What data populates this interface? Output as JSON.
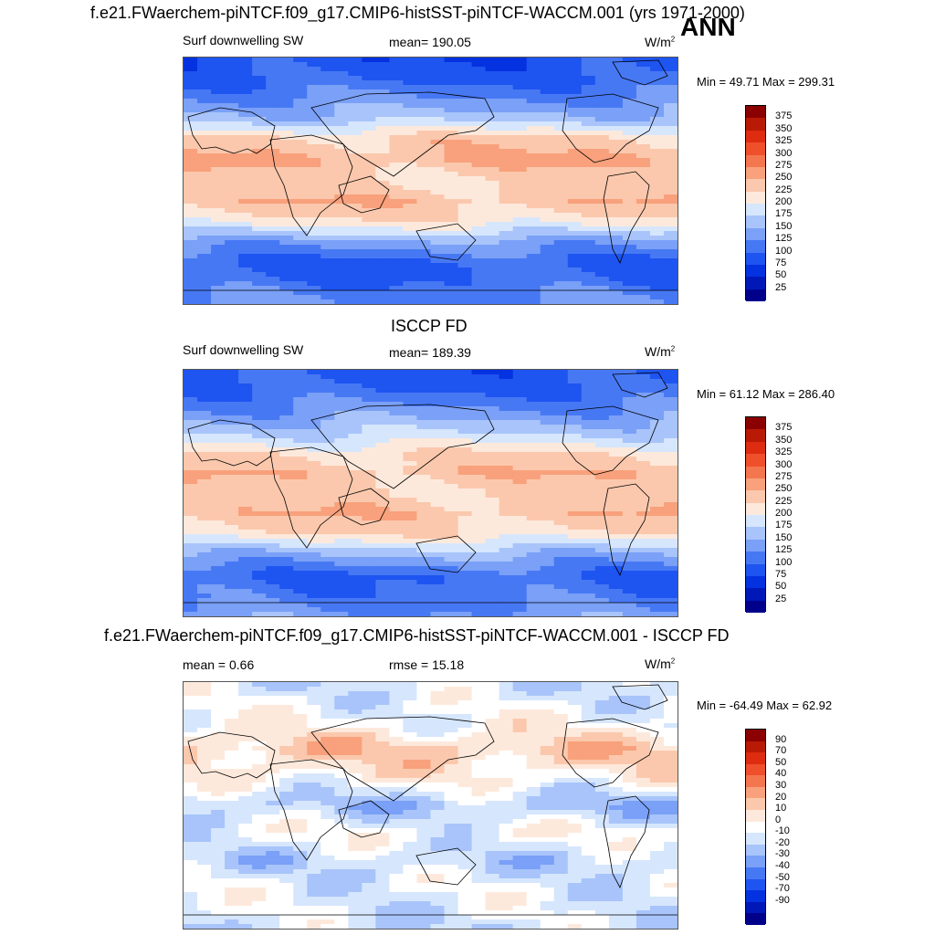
{
  "header": {
    "title": "f.e21.FWaerchem-piNTCF.f09_g17.CMIP6-histSST-piNTCF-WACCM.001 (yrs 1971-2000)",
    "season": "ANN"
  },
  "colors": {
    "abs_scale": [
      "#00008b",
      "#0018b8",
      "#0432e0",
      "#1e54f0",
      "#4778f4",
      "#7aa0f7",
      "#a8c4fa",
      "#d6e6fd",
      "#fde9dc",
      "#fbc8ad",
      "#f8a17c",
      "#f4764f",
      "#ef4f2b",
      "#dd2c10",
      "#b81a06",
      "#8b0000"
    ],
    "diff_scale": [
      "#00008b",
      "#0018b8",
      "#0432e0",
      "#1e54f0",
      "#4778f4",
      "#7aa0f7",
      "#a8c4fa",
      "#d6e6fd",
      "#ffffff",
      "#fde9dc",
      "#fbc8ad",
      "#f8a17c",
      "#f4764f",
      "#ef4f2b",
      "#dd2c10",
      "#b81a06",
      "#8b0000"
    ]
  },
  "chart_data": [
    {
      "type": "heatmap",
      "variable": "Surf downwelling SW",
      "stat_label": "mean= 190.05",
      "units": "W/m",
      "units_exp": "2",
      "minmax": "Min =  49.71 Max = 299.31",
      "levels": [
        "375",
        "350",
        "325",
        "300",
        "275",
        "250",
        "225",
        "200",
        "175",
        "150",
        "125",
        "100",
        "75",
        "50",
        "25"
      ],
      "bands_lat_value": [
        {
          "lat": 90,
          "value": 80
        },
        {
          "lat": 75,
          "value": 95
        },
        {
          "lat": 60,
          "value": 125
        },
        {
          "lat": 45,
          "value": 165
        },
        {
          "lat": 30,
          "value": 235
        },
        {
          "lat": 15,
          "value": 250
        },
        {
          "lat": 0,
          "value": 225
        },
        {
          "lat": -15,
          "value": 245
        },
        {
          "lat": -30,
          "value": 215
        },
        {
          "lat": -45,
          "value": 140
        },
        {
          "lat": -60,
          "value": 95
        },
        {
          "lat": -75,
          "value": 105
        },
        {
          "lat": -90,
          "value": 130
        }
      ]
    },
    {
      "type": "heatmap",
      "panel_title": "ISCCP FD",
      "variable": "Surf downwelling SW",
      "stat_label": "mean= 189.39",
      "units": "W/m",
      "units_exp": "2",
      "minmax": "Min =  61.12 Max = 286.40",
      "levels": [
        "375",
        "350",
        "325",
        "300",
        "275",
        "250",
        "225",
        "200",
        "175",
        "150",
        "125",
        "100",
        "75",
        "50",
        "25"
      ],
      "bands_lat_value": [
        {
          "lat": 90,
          "value": 85
        },
        {
          "lat": 75,
          "value": 100
        },
        {
          "lat": 60,
          "value": 130
        },
        {
          "lat": 45,
          "value": 170
        },
        {
          "lat": 30,
          "value": 220
        },
        {
          "lat": 15,
          "value": 245
        },
        {
          "lat": 0,
          "value": 230
        },
        {
          "lat": -15,
          "value": 245
        },
        {
          "lat": -30,
          "value": 220
        },
        {
          "lat": -45,
          "value": 150
        },
        {
          "lat": -60,
          "value": 100
        },
        {
          "lat": -75,
          "value": 110
        },
        {
          "lat": -90,
          "value": 135
        }
      ]
    },
    {
      "type": "heatmap",
      "panel_title": "f.e21.FWaerchem-piNTCF.f09_g17.CMIP6-histSST-piNTCF-WACCM.001 - ISCCP FD",
      "mean_label": "mean =   0.66",
      "rmse_label": "rmse =  15.18",
      "units": "W/m",
      "units_exp": "2",
      "minmax": "Min = -64.49 Max =  62.92",
      "levels": [
        "90",
        "70",
        "50",
        "40",
        "30",
        "20",
        "10",
        "0",
        "-10",
        "-20",
        "-30",
        "-40",
        "-50",
        "-70",
        "-90"
      ],
      "bands_lat_value": [
        {
          "lat": 90,
          "value": -5
        },
        {
          "lat": 60,
          "value": 5
        },
        {
          "lat": 40,
          "value": 25
        },
        {
          "lat": 20,
          "value": 10
        },
        {
          "lat": 0,
          "value": -15
        },
        {
          "lat": -20,
          "value": 5
        },
        {
          "lat": -40,
          "value": -10
        },
        {
          "lat": -60,
          "value": 0
        },
        {
          "lat": -90,
          "value": -5
        }
      ]
    }
  ]
}
